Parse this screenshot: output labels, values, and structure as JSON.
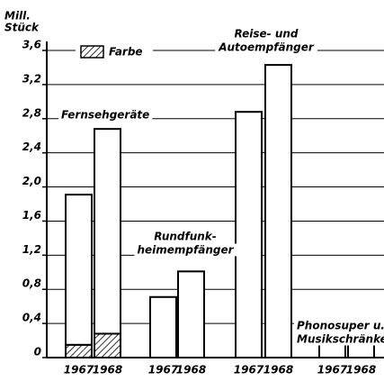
{
  "chart_data": {
    "type": "bar",
    "ylabel": [
      "Mill.",
      "Stück"
    ],
    "ylim": [
      0,
      3.6
    ],
    "yticks": [
      0,
      {
        "value": 0.4,
        "label": "0,4"
      },
      {
        "value": 0.8,
        "label": "0,8"
      },
      {
        "value": 1.2,
        "label": "1,2"
      },
      {
        "value": 1.6,
        "label": "1,6"
      },
      {
        "value": 2.0,
        "label": "2,0"
      },
      {
        "value": 2.4,
        "label": "2,4"
      },
      {
        "value": 2.8,
        "label": "2,8"
      },
      {
        "value": 3.2,
        "label": "3,2"
      },
      {
        "value": 3.6,
        "label": "3,6"
      }
    ],
    "grid": true,
    "groups": [
      {
        "label": [
          "Fernsehgeräte"
        ]
      },
      {
        "label": [
          "Rundfunk-",
          "heimempfänger"
        ]
      },
      {
        "label": [
          "Reise- und",
          "Autoempfänger"
        ]
      },
      {
        "label": [
          "Phonosuper u.",
          "Musikschränke"
        ]
      }
    ],
    "categories": [
      "1967",
      "1968",
      "1967",
      "1968",
      "1967",
      "1968",
      "1967",
      "1968"
    ],
    "series": [
      {
        "name": "Farbe",
        "hatch": true,
        "color": "#000000",
        "values": [
          0.15,
          0.28,
          null,
          null,
          null,
          null,
          null,
          null
        ]
      },
      {
        "color": "#ffffff",
        "values": [
          1.76,
          2.4,
          0.71,
          1.01,
          2.88,
          3.43,
          0.21,
          0.27
        ]
      }
    ]
  }
}
